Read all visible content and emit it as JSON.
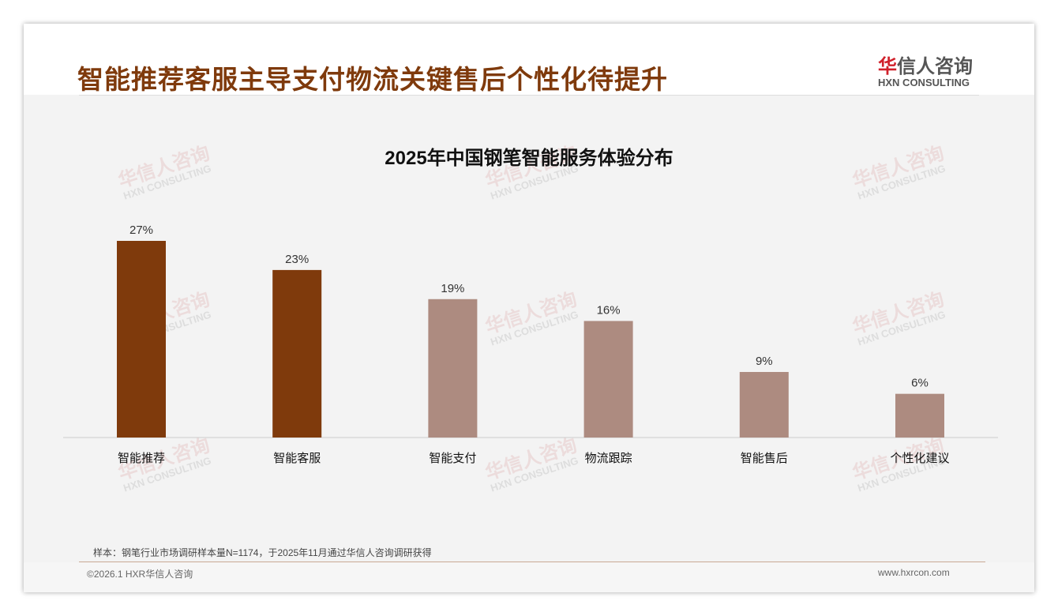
{
  "header": {
    "title": "智能推荐客服主导支付物流关键售后个性化待提升"
  },
  "logo": {
    "cn_accent": "华",
    "cn_rest": "信人咨询",
    "en": "HXN CONSULTING"
  },
  "watermark": {
    "cn": "华信人咨询",
    "en": "HXN CONSULTING"
  },
  "chart_data": {
    "type": "bar",
    "title": "2025年中国钢笔智能服务体验分布",
    "categories": [
      "智能推荐",
      "智能客服",
      "智能支付",
      "物流跟踪",
      "智能售后",
      "个性化建议"
    ],
    "values": [
      27,
      23,
      19,
      16,
      9,
      6
    ],
    "labels": [
      "27%",
      "23%",
      "19%",
      "16%",
      "9%",
      "6%"
    ],
    "unit": "%",
    "ylim": [
      0,
      27
    ],
    "grid": false,
    "colors": [
      "#7f3a0c",
      "#7f3a0c",
      "#ad8b80",
      "#ad8b80",
      "#ad8b80",
      "#ad8b80"
    ]
  },
  "footer": {
    "note": "样本：钢笔行业市场调研样本量N=1174，于2025年11月通过华信人咨询调研获得",
    "copyright": "©2026.1 HXR华信人咨询",
    "website": "www.hxrcon.com"
  }
}
